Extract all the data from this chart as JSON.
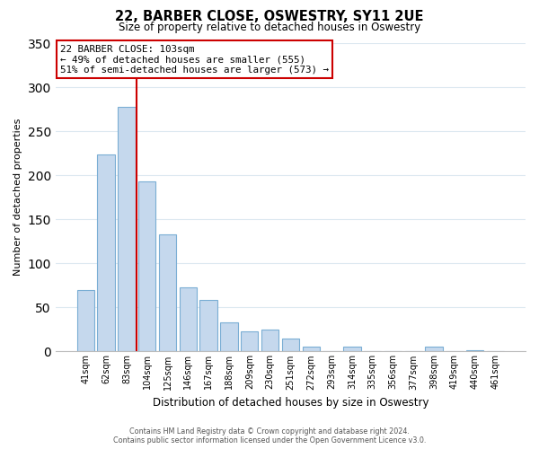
{
  "title": "22, BARBER CLOSE, OSWESTRY, SY11 2UE",
  "subtitle": "Size of property relative to detached houses in Oswestry",
  "xlabel": "Distribution of detached houses by size in Oswestry",
  "ylabel": "Number of detached properties",
  "bar_labels": [
    "41sqm",
    "62sqm",
    "83sqm",
    "104sqm",
    "125sqm",
    "146sqm",
    "167sqm",
    "188sqm",
    "209sqm",
    "230sqm",
    "251sqm",
    "272sqm",
    "293sqm",
    "314sqm",
    "335sqm",
    "356sqm",
    "377sqm",
    "398sqm",
    "419sqm",
    "440sqm",
    "461sqm"
  ],
  "bar_values": [
    70,
    224,
    278,
    193,
    133,
    73,
    58,
    33,
    23,
    25,
    15,
    5,
    0,
    6,
    0,
    0,
    0,
    5,
    0,
    1,
    0
  ],
  "bar_color": "#c5d8ed",
  "bar_edge_color": "#7aaed4",
  "vline_x": 2.5,
  "annotation_text_line1": "22 BARBER CLOSE: 103sqm",
  "annotation_text_line2": "← 49% of detached houses are smaller (555)",
  "annotation_text_line3": "51% of semi-detached houses are larger (573) →",
  "annotation_box_color": "#ffffff",
  "annotation_border_color": "#cc0000",
  "vline_color": "#cc0000",
  "ylim": [
    0,
    350
  ],
  "yticks": [
    0,
    50,
    100,
    150,
    200,
    250,
    300,
    350
  ],
  "footer_line1": "Contains HM Land Registry data © Crown copyright and database right 2024.",
  "footer_line2": "Contains public sector information licensed under the Open Government Licence v3.0.",
  "background_color": "#ffffff",
  "grid_color": "#dce8f0"
}
